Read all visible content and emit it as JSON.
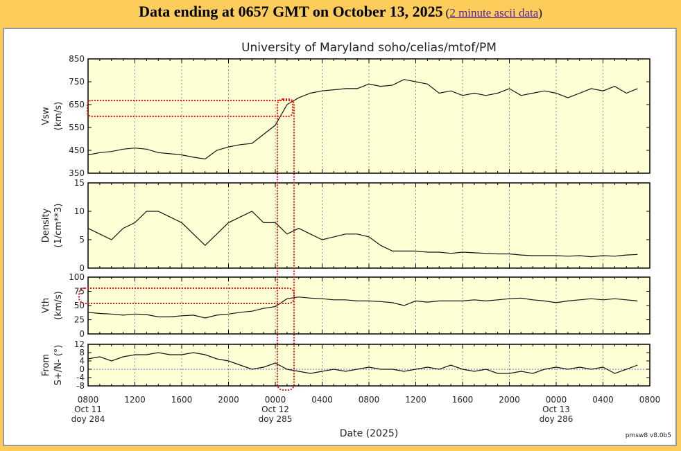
{
  "header": {
    "title": "Data ending at 0657 GMT on October 13, 2025",
    "open_paren": "(",
    "link": "2 minute ascii data",
    "close_paren": ")"
  },
  "chart_data": {
    "type": "line",
    "title": "University of Maryland  soho/celias/mtof/PM",
    "xlabel": "Date (2025)",
    "footer": "pmsw8 v8.0b5",
    "x_unit": "hours since 0800 Oct 11 2025",
    "xlim": [
      0,
      48
    ],
    "x_ticks": [
      "0800",
      "1200",
      "1600",
      "2000",
      "0000",
      "0400",
      "0800",
      "1200",
      "1600",
      "2000",
      "0000",
      "0400",
      "0800"
    ],
    "date_labels": [
      {
        "at": 0,
        "day": "Oct 11",
        "doy": "doy 284"
      },
      {
        "at": 16,
        "day": "Oct 12",
        "doy": "doy 285"
      },
      {
        "at": 40,
        "day": "Oct 13",
        "doy": "doy 286"
      }
    ],
    "x": [
      0,
      1,
      2,
      3,
      4,
      5,
      6,
      7,
      8,
      9,
      10,
      11,
      12,
      13,
      14,
      15,
      16,
      17,
      18,
      19,
      20,
      21,
      22,
      23,
      24,
      25,
      26,
      27,
      28,
      29,
      30,
      31,
      32,
      33,
      34,
      35,
      36,
      37,
      38,
      39,
      40,
      41,
      42,
      43,
      44,
      45,
      46,
      46.95
    ],
    "panels": [
      {
        "name": "Vsw",
        "ylabel": "Vsw",
        "unit": "(km/s)",
        "ylim": [
          350,
          850
        ],
        "yticks": [
          350,
          450,
          550,
          650,
          750,
          850
        ],
        "ytick_labels": [
          "350",
          "450",
          "550",
          "650",
          "750",
          "850"
        ],
        "values": [
          430,
          440,
          445,
          455,
          460,
          455,
          440,
          435,
          430,
          420,
          412,
          450,
          465,
          475,
          480,
          520,
          560,
          650,
          680,
          700,
          710,
          715,
          720,
          720,
          740,
          730,
          735,
          760,
          750,
          740,
          700,
          710,
          690,
          700,
          690,
          700,
          720,
          690,
          700,
          710,
          700,
          680,
          700,
          720,
          710,
          730,
          700,
          720
        ]
      },
      {
        "name": "Density",
        "ylabel": "Density",
        "unit": "(1/cm**3)",
        "ylim": [
          0,
          15
        ],
        "yticks": [
          0,
          5,
          10,
          15
        ],
        "ytick_labels": [
          "0",
          "5",
          "10",
          "15"
        ],
        "values": [
          7,
          6,
          5,
          7,
          8,
          10,
          10,
          9,
          8,
          6,
          4,
          6,
          8,
          9,
          10,
          8,
          8,
          6,
          7,
          6,
          5,
          5.5,
          6,
          6,
          5.5,
          4,
          3,
          3,
          3,
          2.8,
          2.8,
          2.6,
          2.8,
          2.7,
          2.6,
          2.5,
          2.5,
          2.3,
          2.2,
          2.2,
          2.2,
          2.1,
          2.2,
          2.0,
          2.2,
          2.1,
          2.3,
          2.4
        ]
      },
      {
        "name": "Vth",
        "ylabel": "Vth",
        "unit": "(km/s)",
        "ylim": [
          0,
          100
        ],
        "yticks": [
          0,
          25,
          50,
          75,
          100
        ],
        "ytick_labels": [
          "0",
          "25",
          "50",
          "75",
          "100"
        ],
        "values": [
          38,
          36,
          35,
          33,
          35,
          34,
          30,
          30,
          32,
          33,
          28,
          33,
          35,
          38,
          40,
          45,
          48,
          62,
          65,
          63,
          62,
          60,
          60,
          58,
          58,
          57,
          55,
          50,
          58,
          56,
          58,
          58,
          58,
          60,
          58,
          60,
          62,
          63,
          60,
          58,
          55,
          58,
          60,
          62,
          60,
          62,
          60,
          58
        ]
      },
      {
        "name": "Angle",
        "ylabel": "From",
        "unit": "S+/N- (°)",
        "ylim": [
          -8,
          12
        ],
        "yticks": [
          -8,
          -4,
          0,
          4,
          8,
          12
        ],
        "ytick_labels": [
          "-8",
          "-4",
          "0",
          "4",
          "8",
          "12"
        ],
        "zero_line": true,
        "values": [
          5,
          6,
          4,
          6,
          7,
          7,
          8,
          7,
          7,
          8,
          7,
          5,
          4,
          2,
          0,
          1,
          3,
          0,
          -1,
          -2,
          -1,
          0,
          -1,
          0,
          1,
          0,
          0,
          -1,
          0,
          1,
          0,
          2,
          0,
          -1,
          0,
          -2,
          -2,
          -1,
          -2,
          0,
          1,
          0,
          1,
          0,
          1,
          -2,
          0,
          2
        ]
      }
    ]
  },
  "colors": {
    "background": "#fdcd5b",
    "plot_bg": "#ffffd6",
    "line": "#111111",
    "grid": "#888888",
    "zero_line": "#6666dd",
    "annotation": "#ee1111"
  }
}
